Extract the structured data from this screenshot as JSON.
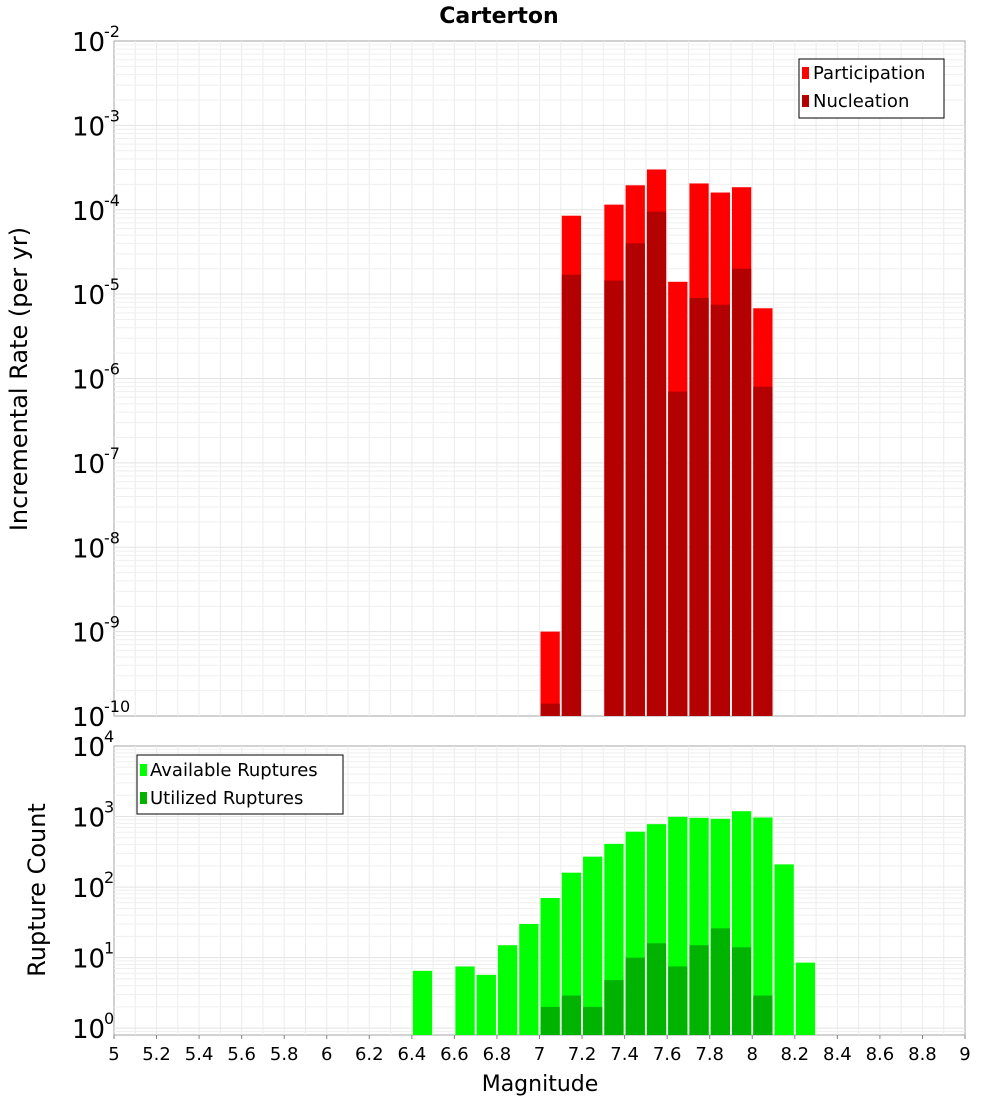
{
  "chart_data": [
    {
      "type": "bar",
      "title": "Carterton",
      "xlabel": "Magnitude",
      "ylabel": "Incremental Rate (per yr)",
      "yscale": "log",
      "ylim": [
        1e-10,
        0.01
      ],
      "xlim": [
        5,
        9
      ],
      "bin_width": 0.1,
      "grid": true,
      "legend_position": "top-right",
      "ytick_labels": [
        {
          "base": "10",
          "exp": "-10"
        },
        {
          "base": "10",
          "exp": "-9"
        },
        {
          "base": "10",
          "exp": "-8"
        },
        {
          "base": "10",
          "exp": "-7"
        },
        {
          "base": "10",
          "exp": "-6"
        },
        {
          "base": "10",
          "exp": "-5"
        },
        {
          "base": "10",
          "exp": "-4"
        },
        {
          "base": "10",
          "exp": "-3"
        },
        {
          "base": "10",
          "exp": "-2"
        }
      ],
      "x": [
        7.05,
        7.15,
        7.35,
        7.45,
        7.55,
        7.65,
        7.75,
        7.85,
        7.95,
        8.05
      ],
      "series": [
        {
          "name": "Participation",
          "color": "#ff0000",
          "values": [
            1e-09,
            8.5e-05,
            0.000115,
            0.000195,
            0.0003,
            1.4e-05,
            0.000205,
            0.00016,
            0.000185,
            6.8e-06
          ]
        },
        {
          "name": "Nucleation",
          "color": "#b30000",
          "values": [
            1.4e-10,
            1.7e-05,
            1.45e-05,
            4e-05,
            9.5e-05,
            7e-07,
            9e-06,
            7.5e-06,
            2e-05,
            8e-07
          ]
        }
      ]
    },
    {
      "type": "bar",
      "title": "",
      "xlabel": "Magnitude",
      "ylabel": "Rupture Count",
      "yscale": "log",
      "ylim": [
        0.8,
        10000.0
      ],
      "xlim": [
        5,
        9
      ],
      "bin_width": 0.1,
      "grid": true,
      "legend_position": "top-left",
      "ytick_labels": [
        {
          "base": "10",
          "exp": "0"
        },
        {
          "base": "10",
          "exp": "1"
        },
        {
          "base": "10",
          "exp": "2"
        },
        {
          "base": "10",
          "exp": "3"
        },
        {
          "base": "10",
          "exp": "4"
        }
      ],
      "xtick_labels": [
        "5",
        "5.2",
        "5.4",
        "5.6",
        "5.8",
        "6",
        "6.2",
        "6.4",
        "6.6",
        "6.8",
        "7",
        "7.2",
        "7.4",
        "7.6",
        "7.8",
        "8",
        "8.2",
        "8.4",
        "8.6",
        "8.8",
        "9"
      ],
      "series": [
        {
          "name": "Available Ruptures",
          "color": "#00ff00",
          "x": [
            6.45,
            6.65,
            6.75,
            6.85,
            6.95,
            7.05,
            7.15,
            7.25,
            7.35,
            7.45,
            7.55,
            7.65,
            7.75,
            7.85,
            7.95,
            8.05,
            8.15,
            8.25
          ],
          "values": [
            6.5,
            7.5,
            5.7,
            15,
            30,
            70,
            160,
            270,
            410,
            610,
            780,
            990,
            960,
            930,
            1190,
            970,
            210,
            8.5
          ]
        },
        {
          "name": "Utilized Ruptures",
          "color": "#00b300",
          "x": [
            7.05,
            7.15,
            7.25,
            7.35,
            7.45,
            7.55,
            7.65,
            7.75,
            7.85,
            7.95,
            8.05
          ],
          "values": [
            2,
            2.9,
            2,
            4.8,
            10,
            16,
            7.5,
            15,
            26,
            14,
            2.9
          ]
        }
      ]
    }
  ]
}
